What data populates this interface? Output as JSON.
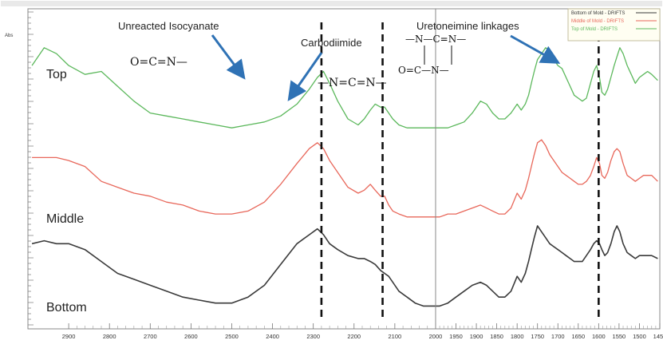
{
  "chart_data": {
    "type": "line",
    "ylabel": "Abs",
    "xlim": [
      3000,
      1450
    ],
    "ylim": [
      0,
      100
    ],
    "grid": false,
    "x_ticks": [
      2900,
      2800,
      2700,
      2600,
      2500,
      2400,
      2300,
      2200,
      2100,
      2000,
      1950,
      1900,
      1850,
      1800,
      1750,
      1700,
      1650,
      1600,
      1550,
      1500,
      1450
    ],
    "legend_position": "top-right",
    "series": [
      {
        "name": "Top of Mold - DRIFTS",
        "color": "#5cb85c",
        "trace_label": "Top",
        "x": [
          2990,
          2960,
          2930,
          2900,
          2860,
          2820,
          2780,
          2740,
          2700,
          2660,
          2620,
          2580,
          2540,
          2500,
          2460,
          2420,
          2380,
          2340,
          2310,
          2290,
          2275,
          2260,
          2240,
          2215,
          2190,
          2175,
          2160,
          2148,
          2135,
          2125,
          2115,
          2105,
          2090,
          2070,
          2050,
          2030,
          2010,
          1990,
          1970,
          1950,
          1930,
          1910,
          1890,
          1875,
          1860,
          1845,
          1830,
          1815,
          1800,
          1790,
          1780,
          1772,
          1765,
          1758,
          1750,
          1740,
          1730,
          1720,
          1710,
          1700,
          1690,
          1680,
          1670,
          1660,
          1650,
          1640,
          1630,
          1620,
          1612,
          1605,
          1598,
          1592,
          1585,
          1578,
          1570,
          1562,
          1555,
          1548,
          1540,
          1530,
          1520,
          1510,
          1500,
          1490,
          1480,
          1470,
          1455
        ],
        "y": [
          86,
          92,
          90,
          86,
          83,
          84,
          79,
          74,
          70,
          69,
          68,
          67,
          66,
          65,
          66,
          67,
          69,
          73,
          78,
          82,
          84,
          80,
          74,
          68,
          66,
          68,
          71,
          73,
          72,
          72,
          70,
          68,
          66,
          65,
          65,
          65,
          65,
          65,
          65,
          66,
          67,
          70,
          74,
          73,
          70,
          68,
          68,
          70,
          73,
          71,
          73,
          76,
          80,
          84,
          88,
          90,
          92,
          91,
          88,
          86,
          85,
          82,
          79,
          76,
          75,
          74,
          75,
          80,
          84,
          86,
          82,
          77,
          76,
          78,
          82,
          86,
          89,
          92,
          90,
          86,
          83,
          80,
          82,
          83,
          84,
          83,
          81
        ]
      },
      {
        "name": "Middle of Mold - DRIFTS",
        "color": "#e8675a",
        "trace_label": "Middle",
        "x": [
          2990,
          2960,
          2930,
          2900,
          2860,
          2820,
          2780,
          2740,
          2700,
          2660,
          2620,
          2580,
          2540,
          2500,
          2460,
          2420,
          2380,
          2340,
          2310,
          2290,
          2275,
          2260,
          2240,
          2215,
          2190,
          2175,
          2160,
          2148,
          2135,
          2125,
          2115,
          2105,
          2090,
          2070,
          2050,
          2030,
          2010,
          1990,
          1970,
          1950,
          1930,
          1910,
          1890,
          1875,
          1860,
          1845,
          1830,
          1815,
          1800,
          1790,
          1780,
          1772,
          1765,
          1758,
          1750,
          1740,
          1730,
          1720,
          1710,
          1700,
          1690,
          1680,
          1670,
          1660,
          1650,
          1640,
          1630,
          1620,
          1612,
          1605,
          1598,
          1592,
          1585,
          1578,
          1570,
          1562,
          1555,
          1548,
          1540,
          1530,
          1520,
          1510,
          1500,
          1490,
          1480,
          1470,
          1455
        ],
        "y": [
          55,
          55,
          55,
          54,
          52,
          47,
          45,
          43,
          42,
          40,
          39,
          37,
          36,
          36,
          37,
          40,
          46,
          53,
          58,
          60,
          58,
          54,
          50,
          45,
          43,
          44,
          46,
          44,
          42,
          42,
          39,
          37,
          36,
          35,
          35,
          35,
          35,
          35,
          36,
          36,
          37,
          38,
          39,
          38,
          37,
          36,
          36,
          38,
          43,
          41,
          44,
          48,
          52,
          56,
          60,
          61,
          59,
          56,
          54,
          52,
          50,
          49,
          48,
          47,
          46,
          46,
          47,
          49,
          52,
          55,
          53,
          49,
          48,
          50,
          54,
          57,
          58,
          57,
          53,
          49,
          48,
          47,
          48,
          49,
          49,
          49,
          47
        ]
      },
      {
        "name": "Bottom of Mold - DRIFTS",
        "color": "#3a3a3a",
        "trace_label": "Bottom",
        "x": [
          2990,
          2960,
          2930,
          2900,
          2860,
          2820,
          2780,
          2740,
          2700,
          2660,
          2620,
          2580,
          2540,
          2500,
          2460,
          2420,
          2380,
          2340,
          2310,
          2290,
          2275,
          2260,
          2240,
          2215,
          2190,
          2175,
          2160,
          2148,
          2135,
          2125,
          2115,
          2105,
          2090,
          2070,
          2050,
          2030,
          2010,
          1990,
          1970,
          1950,
          1930,
          1910,
          1890,
          1875,
          1860,
          1845,
          1830,
          1815,
          1800,
          1790,
          1780,
          1772,
          1765,
          1758,
          1750,
          1740,
          1730,
          1720,
          1710,
          1700,
          1690,
          1680,
          1670,
          1660,
          1650,
          1640,
          1630,
          1620,
          1612,
          1605,
          1598,
          1592,
          1585,
          1578,
          1570,
          1562,
          1555,
          1548,
          1540,
          1530,
          1520,
          1510,
          1500,
          1490,
          1480,
          1470,
          1455
        ],
        "y": [
          26,
          27,
          26,
          26,
          24,
          20,
          16,
          14,
          12,
          10,
          8,
          7,
          6,
          6,
          8,
          12,
          19,
          26,
          29,
          31,
          29,
          26,
          24,
          22,
          21,
          21,
          20,
          19,
          17,
          16,
          15,
          13,
          10,
          8,
          6,
          5,
          5,
          5,
          6,
          8,
          10,
          12,
          13,
          12,
          10,
          8,
          8,
          10,
          15,
          13,
          16,
          20,
          24,
          28,
          32,
          30,
          28,
          26,
          25,
          24,
          23,
          22,
          21,
          20,
          20,
          20,
          22,
          24,
          26,
          27,
          26,
          24,
          22,
          23,
          26,
          30,
          32,
          30,
          26,
          23,
          22,
          21,
          22,
          22,
          22,
          22,
          21
        ]
      }
    ],
    "annotations": {
      "isocyanate_label": "Unreacted Isocyanate",
      "isocyanate_formula": "O=C=N—",
      "carbodiimide_label": "Carbodiimide",
      "carbodiimide_formula": "—N=C=N—",
      "uretoneimine_label": "Uretoneimine linkages",
      "uretoneimine_top": "—N—C=N—",
      "uretoneimine_bottom": "O=C—N—",
      "dashed_lines_x": [
        2280,
        2130,
        1600
      ],
      "center_line_x": 2000
    }
  }
}
